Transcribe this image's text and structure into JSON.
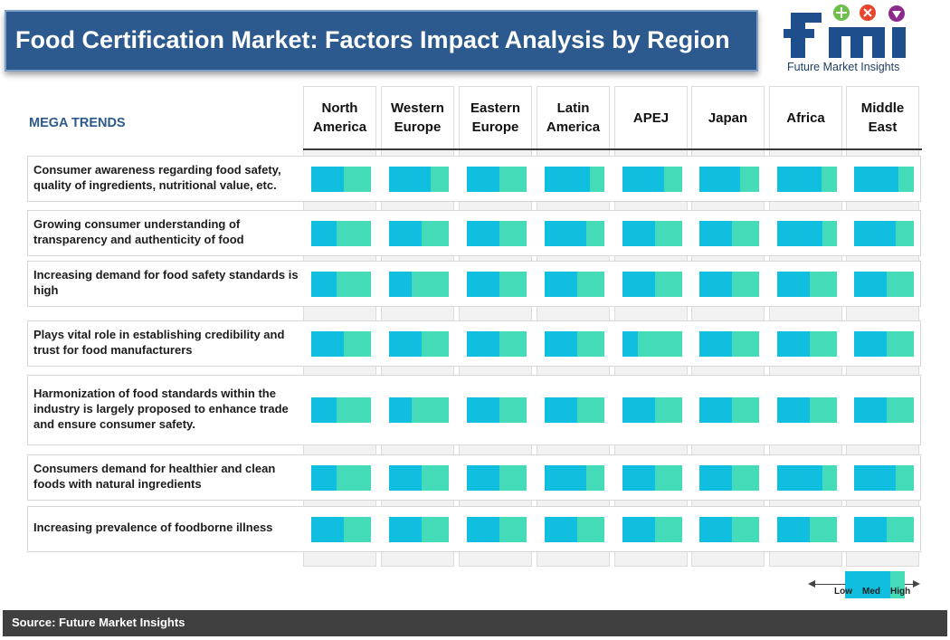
{
  "title": "Food Certification Market: Factors Impact Analysis by Region",
  "logo": {
    "text": "fmi",
    "tagline": "Future Market Insights"
  },
  "colors": {
    "medium": "#10bfe0",
    "high": "#44dbb8",
    "title_bg": "#2d5a8e"
  },
  "chart_data": {
    "type": "table",
    "row_header": "MEGA TRENDS",
    "regions": [
      "North America",
      "Western Europe",
      "Eastern Europe",
      "Latin America",
      "APEJ",
      "Japan",
      "Africa",
      "Middle East"
    ],
    "scale_note": "values = share of cell shown at Medium level (rest is High)",
    "trends": [
      {
        "label": "Consumer awareness regarding food safety, quality of ingredients, nutritional value, etc.",
        "values": [
          0.55,
          0.69,
          0.55,
          0.75,
          0.69,
          0.68,
          0.74,
          0.74
        ]
      },
      {
        "label": "Growing consumer understanding of transparency and authenticity of food",
        "values": [
          0.42,
          0.55,
          0.55,
          0.69,
          0.55,
          0.55,
          0.75,
          0.69
        ]
      },
      {
        "label": "Increasing demand for food safety standards  is high",
        "values": [
          0.42,
          0.38,
          0.55,
          0.55,
          0.55,
          0.55,
          0.55,
          0.55
        ]
      },
      {
        "label": "Plays vital role in establishing credibility and trust for food manufacturers",
        "values": [
          0.55,
          0.55,
          0.55,
          0.55,
          0.25,
          0.55,
          0.55,
          0.55
        ]
      },
      {
        "label": "Harmonization of food standards within the industry is largely proposed to enhance trade and ensure consumer safety.",
        "values": [
          0.42,
          0.38,
          0.55,
          0.55,
          0.55,
          0.55,
          0.55,
          0.55
        ]
      },
      {
        "label": "Consumers demand for healthier and clean foods with natural  ingredients",
        "values": [
          0.42,
          0.55,
          0.55,
          0.69,
          0.55,
          0.55,
          0.76,
          0.69
        ]
      },
      {
        "label": "Increasing prevalence of foodborne illness",
        "values": [
          0.55,
          0.55,
          0.55,
          0.55,
          0.55,
          0.55,
          0.55,
          0.55
        ]
      }
    ],
    "legend": {
      "low": "Low",
      "med": "Med",
      "high": "High"
    }
  },
  "source": "Source: Future Market Insights"
}
